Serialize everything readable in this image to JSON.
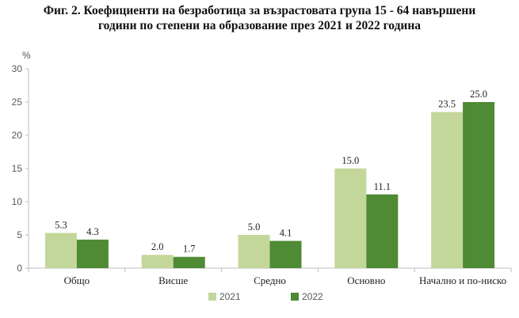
{
  "chart_data": {
    "type": "bar",
    "title_lines": [
      "Фиг. 2. Коефициенти на безработица за възрастовата група 15 - 64 навършени",
      "години по степени на образование през 2021 и 2022 година"
    ],
    "ylabel": "%",
    "ylim": [
      0,
      30
    ],
    "yticks": [
      0,
      5,
      10,
      15,
      20,
      25,
      30
    ],
    "categories": [
      "Общо",
      "Висше",
      "Средно",
      "Основно",
      "Начално и по-ниско"
    ],
    "series": [
      {
        "name": "2021",
        "color": "#c4d79b",
        "values": [
          5.3,
          2.0,
          5.0,
          15.0,
          23.5
        ],
        "labels": [
          "5.3",
          "2.0",
          "5.0",
          "15.0",
          "23.5"
        ]
      },
      {
        "name": "2022",
        "color": "#4f8a34",
        "values": [
          4.3,
          1.7,
          4.1,
          11.1,
          25.0
        ],
        "labels": [
          "4.3",
          "1.7",
          "4.1",
          "11.1",
          "25.0"
        ]
      }
    ],
    "legend_position": "bottom",
    "grid": false
  }
}
